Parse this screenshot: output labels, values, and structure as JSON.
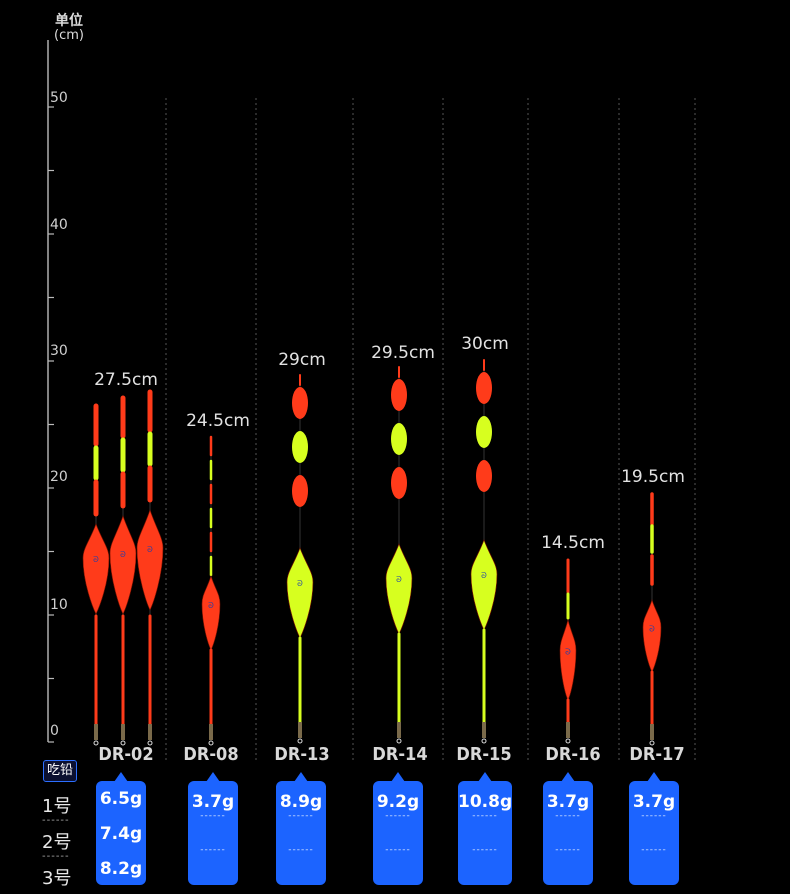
{
  "axis": {
    "unit_line1": "单位",
    "unit_line2": "(cm)",
    "ticks": [
      "50",
      "40",
      "30",
      "20",
      "10",
      "0"
    ]
  },
  "floats": [
    {
      "model": "DR-02",
      "length": "27.5cm",
      "weights": [
        "6.5g",
        "7.4g",
        "8.2g"
      ]
    },
    {
      "model": "DR-08",
      "length": "24.5cm",
      "weights": [
        "3.7g"
      ]
    },
    {
      "model": "DR-13",
      "length": "29cm",
      "weights": [
        "8.9g"
      ]
    },
    {
      "model": "DR-14",
      "length": "29.5cm",
      "weights": [
        "9.2g"
      ]
    },
    {
      "model": "DR-15",
      "length": "30cm",
      "weights": [
        "10.8g"
      ]
    },
    {
      "model": "DR-16",
      "length": "14.5cm",
      "weights": [
        "3.7g"
      ]
    },
    {
      "model": "DR-17",
      "length": "19.5cm",
      "weights": [
        "3.7g"
      ]
    }
  ],
  "table": {
    "header": "吃铅",
    "rows": [
      "1号",
      "2号",
      "3号"
    ],
    "separator": "------",
    "placeholder": "------"
  },
  "colors": {
    "red": "#ff3b1a",
    "yellow": "#d7ff1f",
    "blue": "#1c64ff",
    "background": "#000000"
  }
}
